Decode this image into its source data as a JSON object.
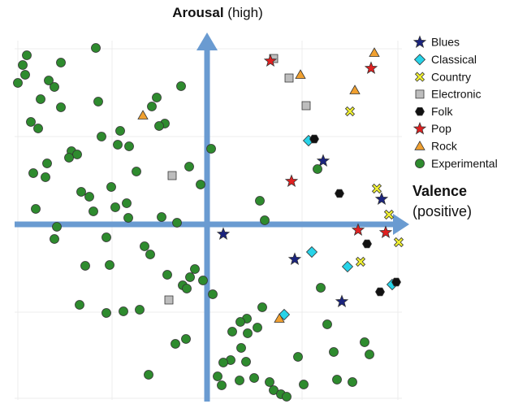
{
  "chart_data": {
    "type": "scatter",
    "axis_labels": {
      "y": [
        "Arousal",
        "(high)"
      ],
      "x": [
        "Valence",
        "(positive)"
      ]
    },
    "xlim": [
      -237,
      237
    ],
    "ylim": [
      -220,
      220
    ],
    "legend": "right",
    "series": [
      {
        "name": "Blues",
        "color": "#1a237e",
        "marker": "star",
        "x": [
          143,
          215,
          20,
          108,
          166
        ],
        "y": [
          78,
          31,
          -12,
          -43,
          -95
        ]
      },
      {
        "name": "Classical",
        "color": "#27d3e8",
        "marker": "diamond",
        "x": [
          125,
          129,
          173,
          228,
          95
        ],
        "y": [
          103,
          -34,
          -52,
          -74,
          -111
        ]
      },
      {
        "name": "Country",
        "color": "#f2f230",
        "marker": "x",
        "x": [
          176,
          209,
          224,
          189,
          236
        ],
        "y": [
          139,
          44,
          12,
          -46,
          -22
        ]
      },
      {
        "name": "Electronic",
        "color": "#bdbdbd",
        "marker": "square",
        "x": [
          82,
          101,
          122,
          -43,
          -47
        ],
        "y": [
          204,
          180,
          146,
          60,
          -93
        ]
      },
      {
        "name": "Folk",
        "color": "#111111",
        "marker": "hexagon",
        "x": [
          132,
          163,
          197,
          213,
          233
        ],
        "y": [
          105,
          38,
          -24,
          -83,
          -71
        ]
      },
      {
        "name": "Pop",
        "color": "#e02020",
        "marker": "star",
        "x": [
          78,
          202,
          104,
          186,
          220
        ],
        "y": [
          201,
          192,
          53,
          -7,
          -10
        ]
      },
      {
        "name": "Rock",
        "color": "#f0a030",
        "marker": "triangle",
        "x": [
          206,
          115,
          182,
          -79,
          89
        ],
        "y": [
          211,
          184,
          165,
          134,
          -116
        ]
      },
      {
        "name": "Experimental",
        "color": "#2e8b2e",
        "marker": "circle",
        "x": [
          -137,
          -222,
          -227,
          -180,
          -224,
          -195,
          -233,
          -188,
          -205,
          -134,
          -62,
          -32,
          -180,
          -68,
          -217,
          -208,
          -52,
          -59,
          -130,
          -107,
          -167,
          -160,
          -170,
          -197,
          -96,
          -110,
          -214,
          -199,
          -87,
          -22,
          5,
          -8,
          -155,
          -145,
          -118,
          -113,
          -99,
          -97,
          -211,
          -140,
          -56,
          -37,
          -185,
          -188,
          -124,
          -77,
          -70,
          -120,
          -150,
          -49,
          -15,
          -21,
          -30,
          -25,
          -5,
          7,
          -157,
          -103,
          -124,
          -83,
          -39,
          -26,
          -72,
          65,
          71,
          136,
          140,
          68,
          148,
          112,
          156,
          200,
          194,
          49,
          41,
          31,
          50,
          62,
          42,
          29,
          48,
          20,
          13,
          18,
          40,
          58,
          77,
          82,
          91,
          98,
          119,
          160,
          179
        ],
        "y": [
          217,
          208,
          196,
          199,
          184,
          177,
          174,
          169,
          154,
          151,
          156,
          170,
          144,
          145,
          126,
          118,
          124,
          121,
          108,
          115,
          90,
          86,
          82,
          75,
          96,
          98,
          63,
          58,
          65,
          71,
          93,
          49,
          40,
          34,
          46,
          21,
          26,
          8,
          19,
          16,
          9,
          2,
          -3,
          -18,
          -16,
          -27,
          -37,
          -50,
          -51,
          -62,
          -55,
          -65,
          -75,
          -79,
          -69,
          -86,
          -99,
          -107,
          -109,
          -105,
          -147,
          -141,
          -185,
          29,
          5,
          68,
          -78,
          -102,
          -123,
          -163,
          -157,
          -160,
          -145,
          -116,
          -120,
          -132,
          -134,
          -127,
          -152,
          -167,
          -169,
          -170,
          -187,
          -198,
          -192,
          -189,
          -194,
          -204,
          -209,
          -212,
          -197,
          -191,
          -194
        ]
      }
    ]
  }
}
